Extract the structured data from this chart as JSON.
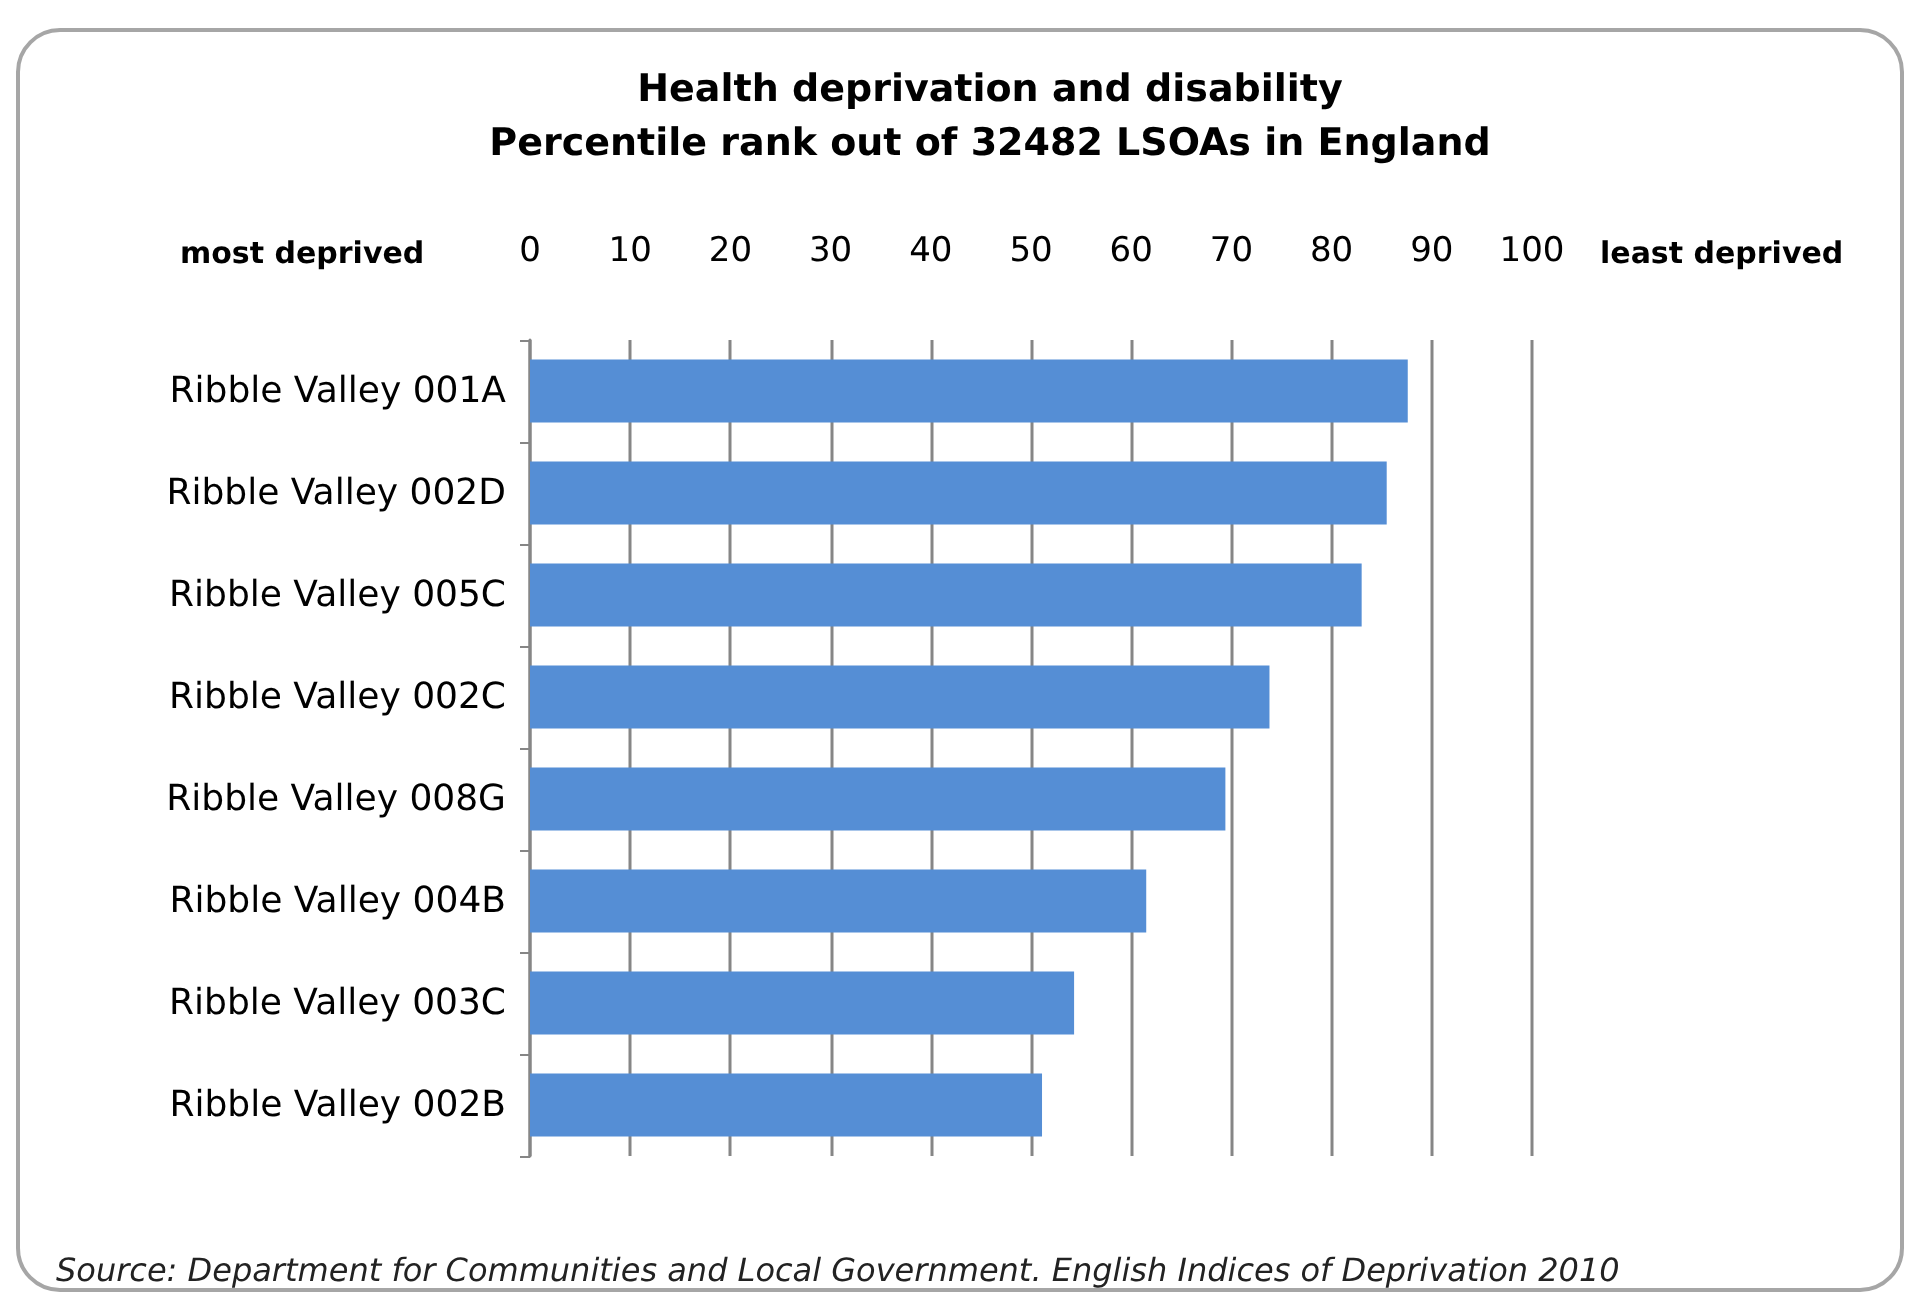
{
  "chart_data": {
    "type": "bar",
    "orientation": "horizontal",
    "title": "Health deprivation and disability",
    "subtitle": "Percentile rank out of 32482 LSOAs in England",
    "categories": [
      "Ribble Valley 001A",
      "Ribble Valley 002D",
      "Ribble Valley 005C",
      "Ribble Valley 002C",
      "Ribble Valley 008G",
      "Ribble Valley 004B",
      "Ribble Valley 003C",
      "Ribble Valley 002B"
    ],
    "values": [
      87.6,
      85.5,
      83.0,
      73.8,
      69.4,
      61.5,
      54.3,
      51.1
    ],
    "color": "#558ed5",
    "xlim": [
      0,
      100
    ],
    "xticks": [
      0,
      10,
      20,
      30,
      40,
      50,
      60,
      70,
      80,
      90,
      100
    ],
    "grid": "x",
    "annotations": [
      "most deprived",
      "least deprived",
      "Source: Department for Communities and Local Government. English Indices of Deprivation 2010"
    ]
  }
}
